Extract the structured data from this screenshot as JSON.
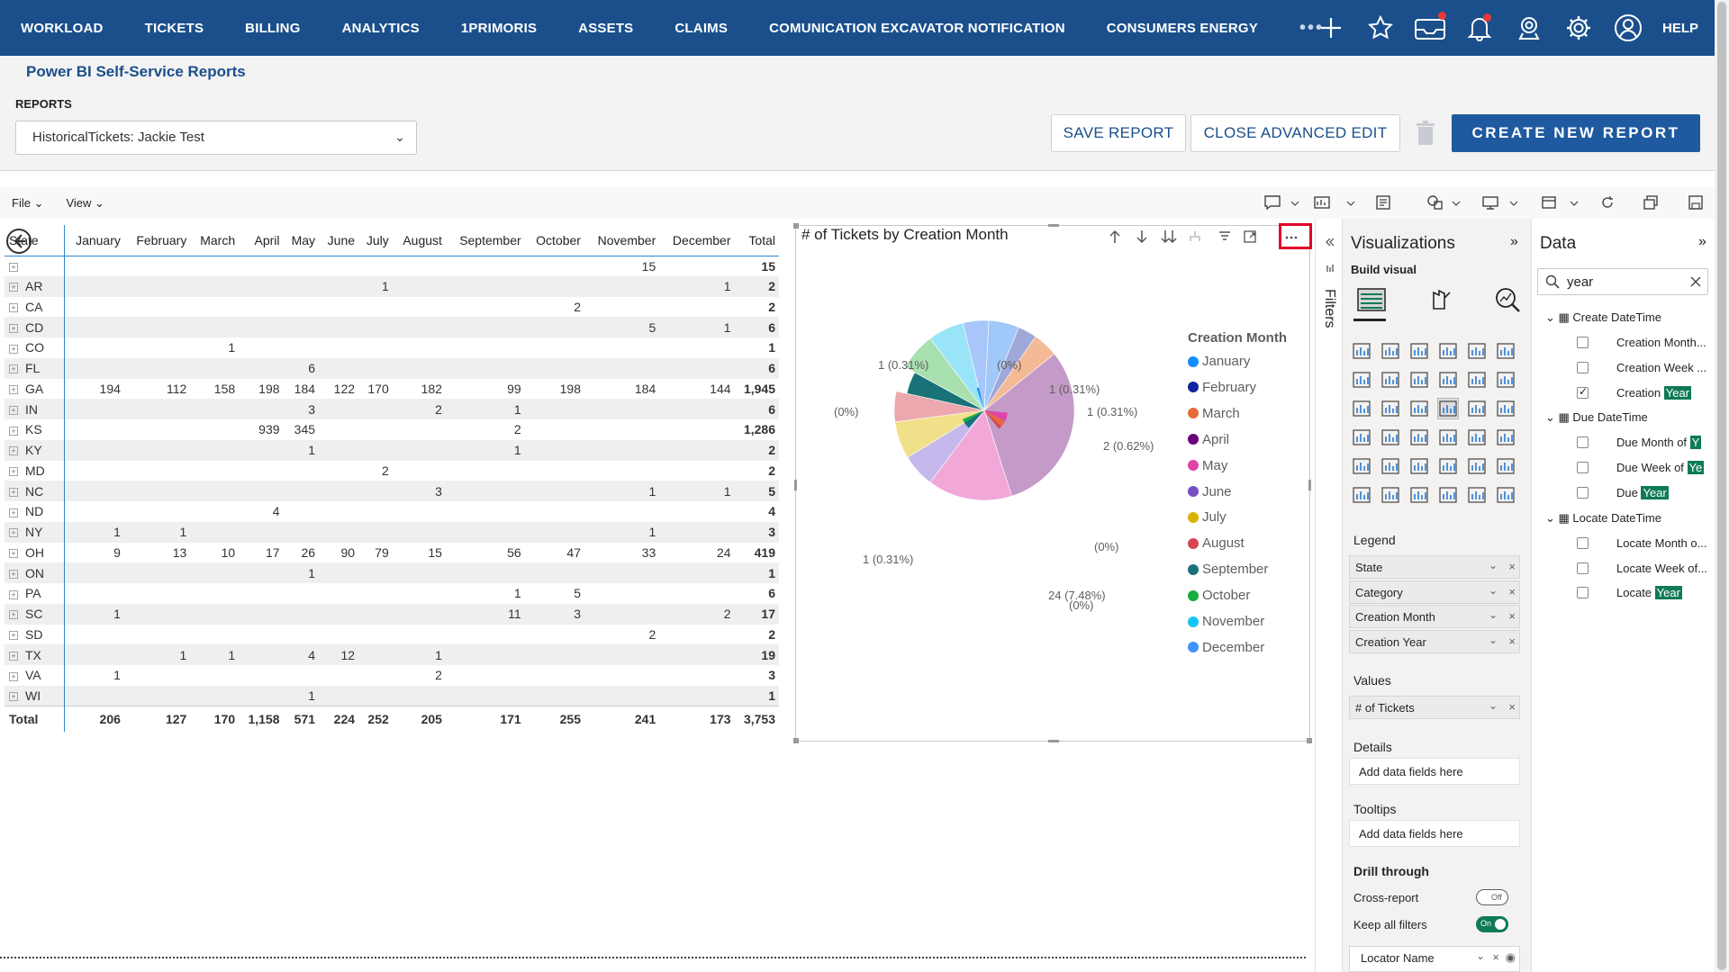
{
  "topnav": {
    "items": [
      "WORKLOAD",
      "TICKETS",
      "BILLING",
      "ANALYTICS",
      "1PRIMORIS",
      "ASSETS",
      "CLAIMS",
      "COMUNICATION EXCAVATOR NOTIFICATION",
      "CONSUMERS ENERGY"
    ],
    "more": "•••",
    "help": "HELP",
    "icons": [
      "plus-icon",
      "star-icon",
      "inbox-icon",
      "bell-icon",
      "support-icon",
      "gear-icon",
      "user-icon"
    ]
  },
  "header": {
    "page_title": "Power BI Self-Service Reports",
    "reports_label": "REPORTS",
    "selected_report": "HistoricalTickets: Jackie Test",
    "save_label": "SAVE REPORT",
    "close_label": "CLOSE ADVANCED EDIT",
    "create_label": "CREATE NEW REPORT"
  },
  "pbi_toolbar": {
    "file": "File",
    "view": "View"
  },
  "matrix": {
    "columns": [
      "State",
      "January",
      "February",
      "March",
      "April",
      "May",
      "June",
      "July",
      "August",
      "September",
      "October",
      "November",
      "December",
      "Total"
    ],
    "rows": [
      [
        "",
        "",
        "",
        "",
        "",
        "",
        "",
        "",
        "",
        "",
        "",
        "15",
        "",
        "15"
      ],
      [
        "AR",
        "",
        "",
        "",
        "",
        "",
        "",
        "1",
        "",
        "",
        "",
        "",
        "1",
        "2"
      ],
      [
        "CA",
        "",
        "",
        "",
        "",
        "",
        "",
        "",
        "",
        "",
        "2",
        "",
        "",
        "2"
      ],
      [
        "CD",
        "",
        "",
        "",
        "",
        "",
        "",
        "",
        "",
        "",
        "",
        "5",
        "1",
        "6"
      ],
      [
        "CO",
        "",
        "",
        "1",
        "",
        "",
        "",
        "",
        "",
        "",
        "",
        "",
        "",
        "1"
      ],
      [
        "FL",
        "",
        "",
        "",
        "",
        "6",
        "",
        "",
        "",
        "",
        "",
        "",
        "",
        "6"
      ],
      [
        "GA",
        "194",
        "112",
        "158",
        "198",
        "184",
        "122",
        "170",
        "182",
        "99",
        "198",
        "184",
        "144",
        "1,945"
      ],
      [
        "IN",
        "",
        "",
        "",
        "",
        "3",
        "",
        "",
        "2",
        "1",
        "",
        "",
        "",
        "6"
      ],
      [
        "KS",
        "",
        "",
        "",
        "939",
        "345",
        "",
        "",
        "",
        "2",
        "",
        "",
        "",
        "1,286"
      ],
      [
        "KY",
        "",
        "",
        "",
        "",
        "1",
        "",
        "",
        "",
        "1",
        "",
        "",
        "",
        "2"
      ],
      [
        "MD",
        "",
        "",
        "",
        "",
        "",
        "",
        "2",
        "",
        "",
        "",
        "",
        "",
        "2"
      ],
      [
        "NC",
        "",
        "",
        "",
        "",
        "",
        "",
        "",
        "3",
        "",
        "",
        "1",
        "1",
        "5"
      ],
      [
        "ND",
        "",
        "",
        "",
        "4",
        "",
        "",
        "",
        "",
        "",
        "",
        "",
        "",
        "4"
      ],
      [
        "NY",
        "1",
        "1",
        "",
        "",
        "",
        "",
        "",
        "",
        "",
        "",
        "1",
        "",
        "3"
      ],
      [
        "OH",
        "9",
        "13",
        "10",
        "17",
        "26",
        "90",
        "79",
        "15",
        "56",
        "47",
        "33",
        "24",
        "419"
      ],
      [
        "ON",
        "",
        "",
        "",
        "",
        "1",
        "",
        "",
        "",
        "",
        "",
        "",
        "",
        "1"
      ],
      [
        "PA",
        "",
        "",
        "",
        "",
        "",
        "",
        "",
        "",
        "1",
        "5",
        "",
        "",
        "6"
      ],
      [
        "SC",
        "1",
        "",
        "",
        "",
        "",
        "",
        "",
        "",
        "11",
        "3",
        "",
        "2",
        "17"
      ],
      [
        "SD",
        "",
        "",
        "",
        "",
        "",
        "",
        "",
        "",
        "",
        "",
        "2",
        "",
        "2"
      ],
      [
        "TX",
        "",
        "1",
        "1",
        "",
        "4",
        "12",
        "",
        "1",
        "",
        "",
        "",
        "",
        "19"
      ],
      [
        "VA",
        "1",
        "",
        "",
        "",
        "",
        "",
        "",
        "2",
        "",
        "",
        "",
        "",
        "3"
      ],
      [
        "WI",
        "",
        "",
        "",
        "",
        "1",
        "",
        "",
        "",
        "",
        "",
        "",
        "",
        "1"
      ]
    ],
    "total_row": [
      "Total",
      "206",
      "127",
      "170",
      "1,158",
      "571",
      "224",
      "252",
      "205",
      "171",
      "255",
      "241",
      "173",
      "3,753"
    ]
  },
  "chart_data": {
    "type": "pie",
    "title": "# of Tickets by Creation Month",
    "legend_title": "Creation Month",
    "legend_position": "right",
    "categories": [
      "January",
      "February",
      "March",
      "April",
      "May",
      "June",
      "July",
      "August",
      "September",
      "October",
      "November",
      "December"
    ],
    "colors": [
      "#118dff",
      "#12239e",
      "#e66c37",
      "#6b007b",
      "#e044a7",
      "#744ec2",
      "#d9b300",
      "#d64550",
      "#197278",
      "#1aab40",
      "#15c6f4",
      "#4092ff"
    ],
    "visible_labels": [
      "1 (0.31%)",
      "(0%)",
      "1 (0.31%)",
      "1 (0.31%)",
      "2 (0.62%)",
      "(0%)",
      "(0%)",
      "24 (7.48%)",
      "1 (0.31%)",
      "(0%)"
    ]
  },
  "filters": {
    "label": "Filters"
  },
  "visualizations": {
    "title": "Visualizations",
    "build_visual": "Build visual",
    "legend_label": "Legend",
    "legend_fields": [
      "State",
      "Category",
      "Creation Month",
      "Creation Year"
    ],
    "values_label": "Values",
    "values_fields": [
      "# of Tickets"
    ],
    "details_label": "Details",
    "tooltips_label": "Tooltips",
    "add_placeholder": "Add data fields here",
    "drill_label": "Drill through",
    "cross_report": "Cross-report",
    "cross_state": "Off",
    "keep_filters": "Keep all filters",
    "keep_state": "On",
    "locator_field": "Locator Name"
  },
  "data": {
    "title": "Data",
    "search_value": "year",
    "tables": [
      {
        "name": "Create DateTime",
        "fields": [
          {
            "pre": "Creation Month...",
            "hl": ""
          },
          {
            "pre": "Creation Week ...",
            "hl": ""
          },
          {
            "pre": "Creation ",
            "hl": "Year",
            "checked": true
          }
        ]
      },
      {
        "name": "Due DateTime",
        "fields": [
          {
            "pre": "Due Month of ",
            "hl": "Y"
          },
          {
            "pre": "Due Week of ",
            "hl": "Ye"
          },
          {
            "pre": "Due ",
            "hl": "Year"
          }
        ]
      },
      {
        "name": "Locate DateTime",
        "fields": [
          {
            "pre": "Locate Month o...",
            "hl": ""
          },
          {
            "pre": "Locate Week of...",
            "hl": ""
          },
          {
            "pre": "Locate ",
            "hl": "Year"
          }
        ]
      }
    ]
  }
}
